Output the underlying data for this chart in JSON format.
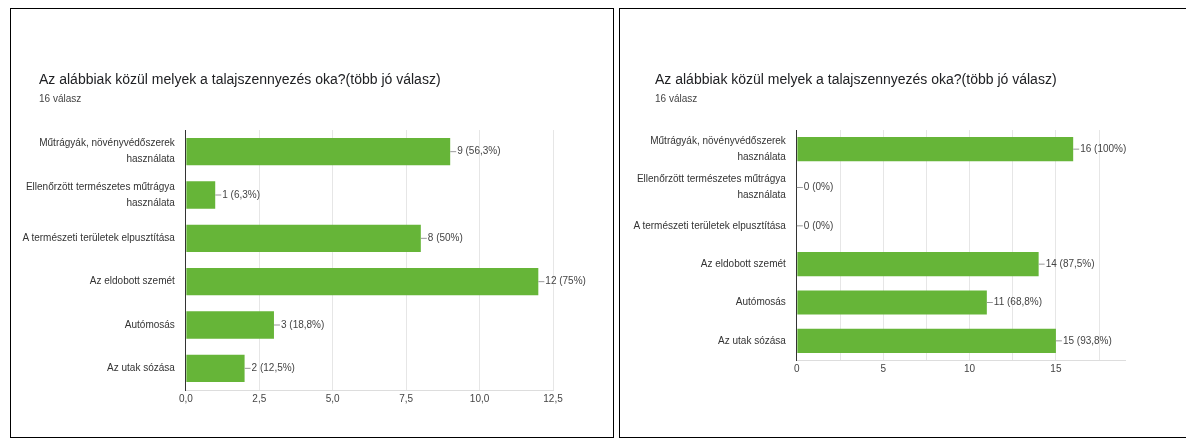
{
  "chart_data": [
    {
      "type": "bar",
      "orientation": "horizontal",
      "title": "Az alábbiak közül melyek a talajszennyezés oka?(több jó válasz)",
      "subtitle": "16 válasz",
      "categories": [
        "Műtrágyák, növényvédőszerek használata",
        "Ellenőrzött természetes műtrágya használata",
        "A természeti területek elpusztítása",
        "Az eldobott szemét",
        "Autómosás",
        "Az utak sózása"
      ],
      "values": [
        9,
        1,
        8,
        12,
        3,
        2
      ],
      "color": "#66b538",
      "value_labels": [
        "9 (56,3%)",
        "1 (6,3%)",
        "8 (50%)",
        "12 (75%)",
        "3 (18,8%)",
        "2 (12,5%)"
      ],
      "xlim": [
        0,
        12.5
      ],
      "xticks": [
        {
          "value": 0,
          "label": "0,0"
        },
        {
          "value": 2.5,
          "label": "2,5"
        },
        {
          "value": 5,
          "label": "5,0"
        },
        {
          "value": 7.5,
          "label": "7,5"
        },
        {
          "value": 10,
          "label": "10,0"
        },
        {
          "value": 12.5,
          "label": "12,5"
        }
      ],
      "grid": "x",
      "legend": false
    },
    {
      "type": "bar",
      "orientation": "horizontal",
      "title": "Az alábbiak közül melyek a talajszennyezés oka?(több jó válasz)",
      "subtitle": "16 válasz",
      "categories": [
        "Műtrágyák, növényvédőszerek használata",
        "Ellenőrzött természetes műtrágya használata",
        "A természeti területek elpusztítása",
        "Az eldobott szemét",
        "Autómosás",
        "Az utak sózása"
      ],
      "values": [
        16,
        0,
        0,
        14,
        11,
        15
      ],
      "color": "#66b538",
      "value_labels": [
        "16 (100%)",
        "0 (0%)",
        "0 (0%)",
        "14 (87,5%)",
        "11 (68,8%)",
        "15 (93,8%)"
      ],
      "xlim": [
        0,
        19
      ],
      "xticks": [
        0,
        {
          "value": 2.5,
          "label": null
        },
        5,
        {
          "value": 7.5,
          "label": null
        },
        10,
        {
          "value": 12.5,
          "label": null
        },
        15,
        {
          "value": 17.5,
          "label": null
        }
      ],
      "grid": "x",
      "legend": false
    }
  ]
}
